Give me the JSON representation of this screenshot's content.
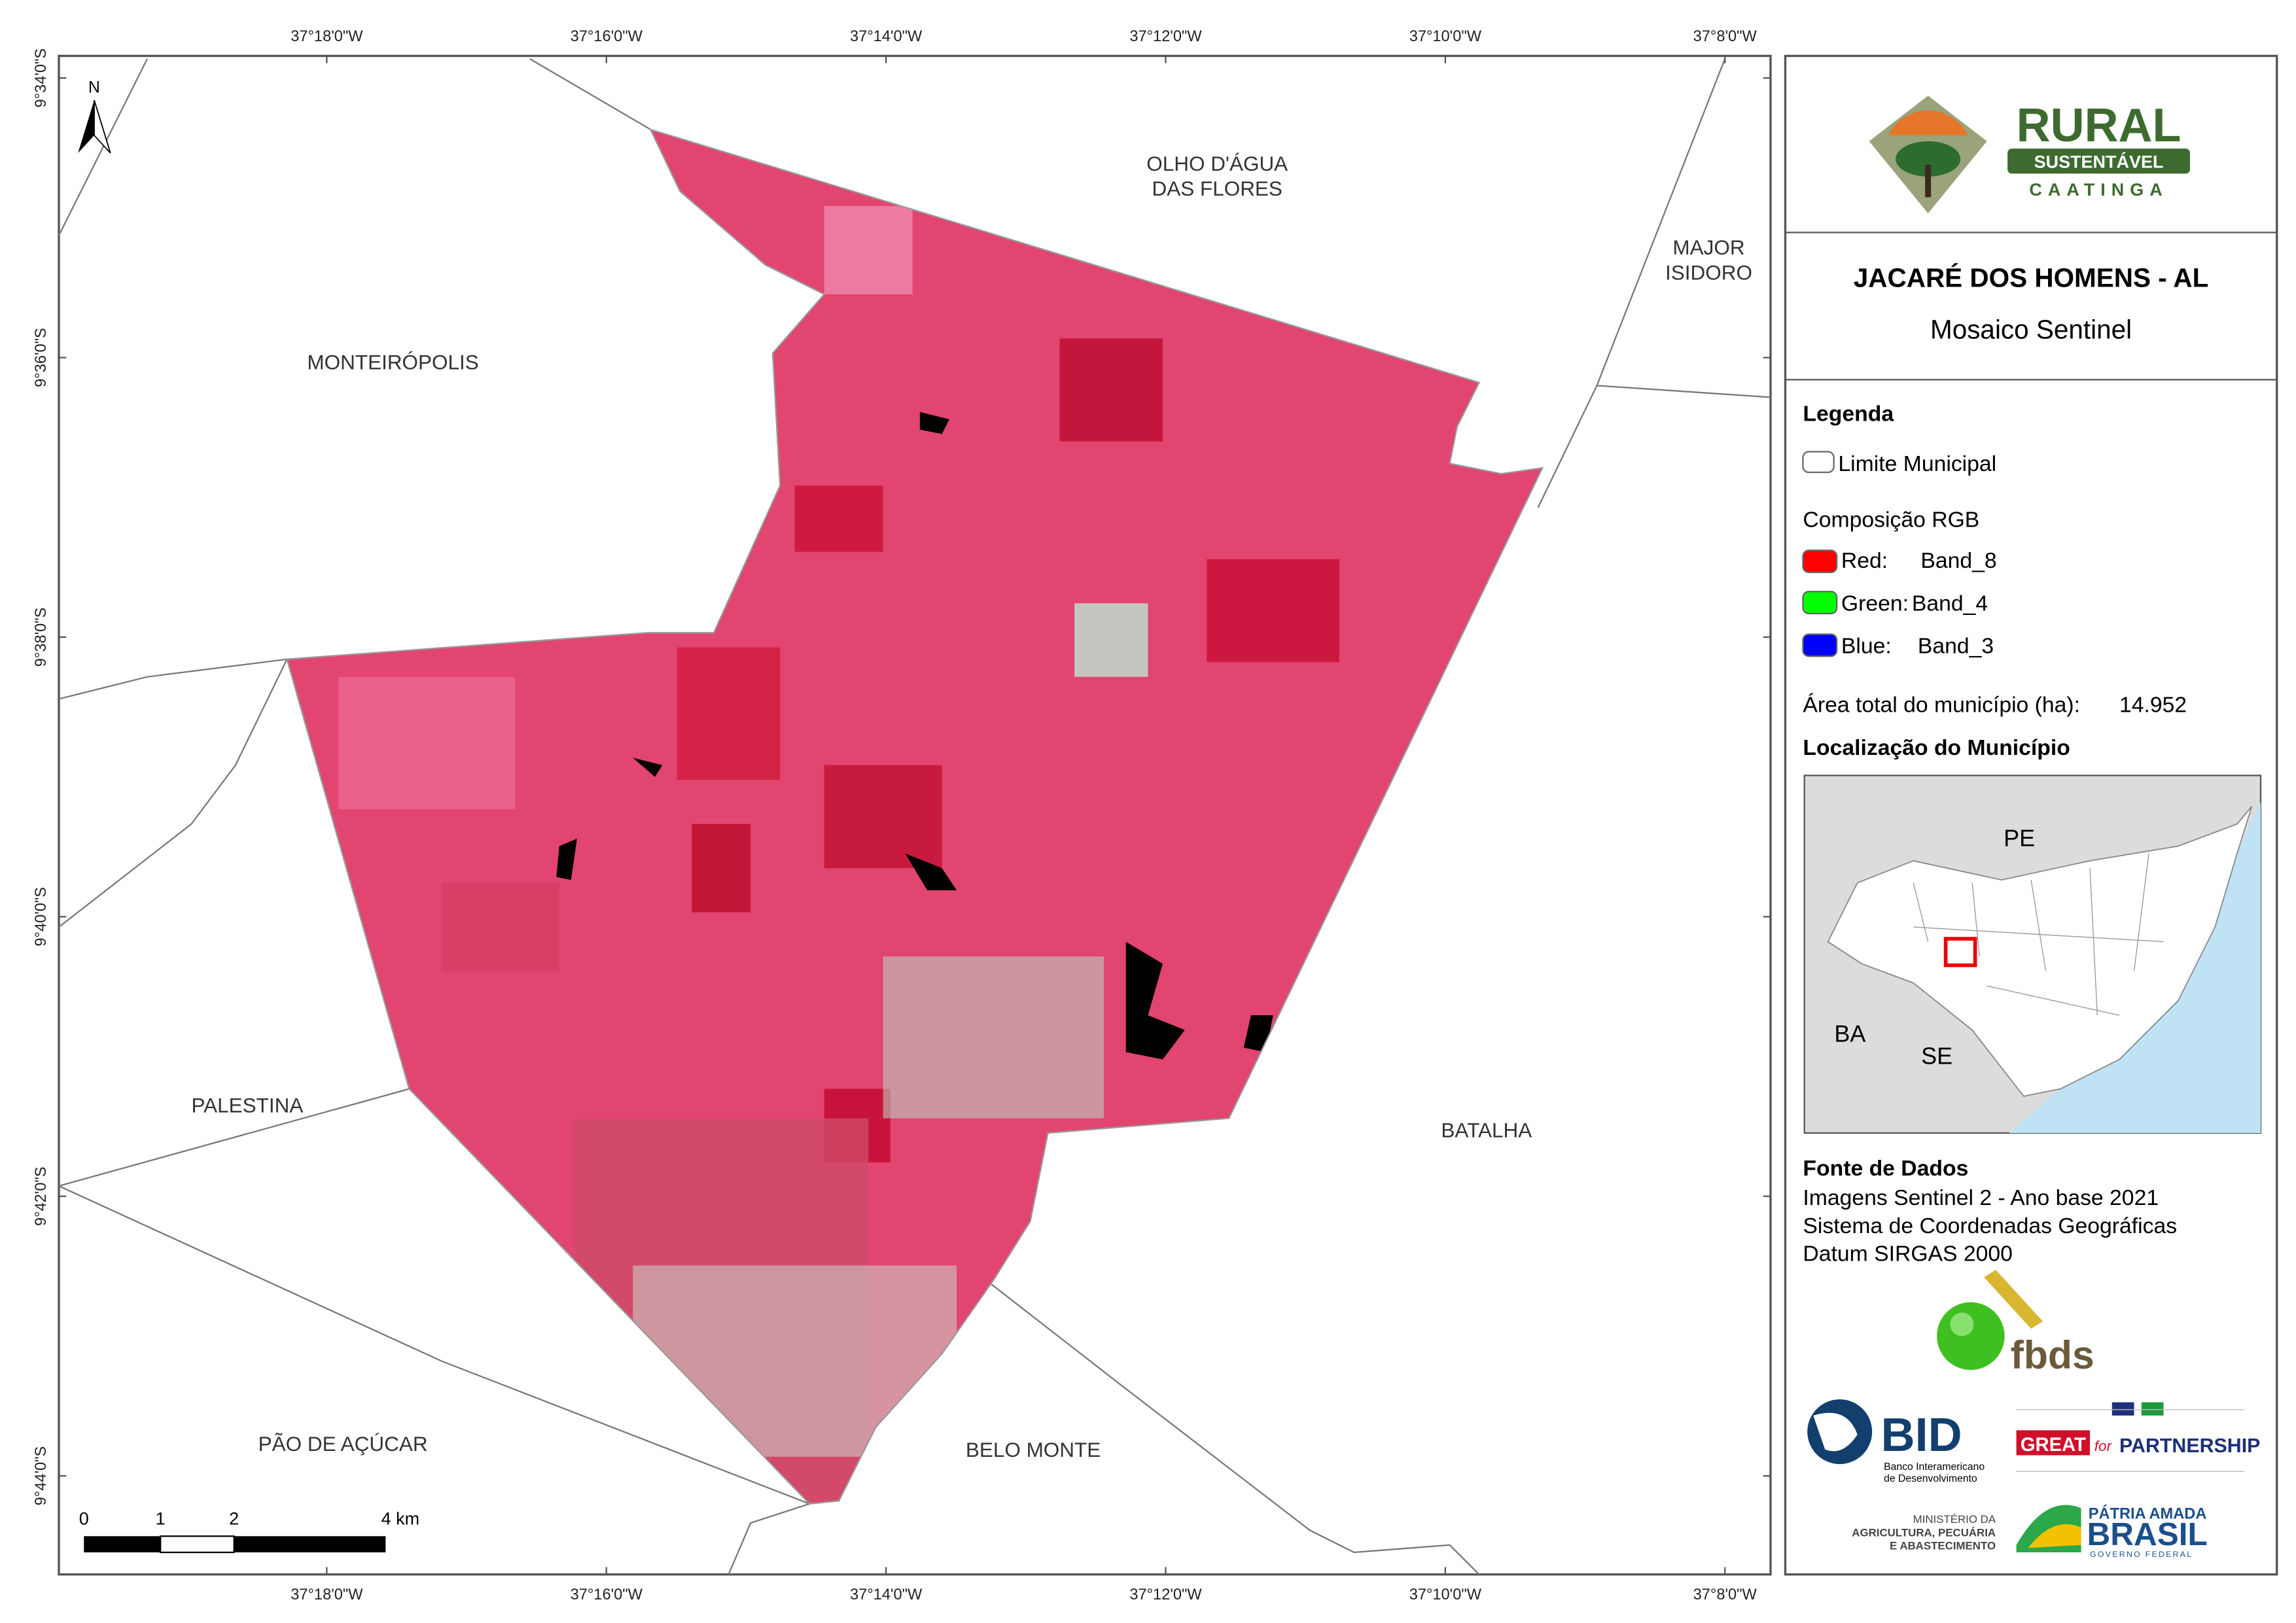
{
  "map": {
    "longitude_labels": [
      "37°18'0\"W",
      "37°16'0\"W",
      "37°14'0\"W",
      "37°12'0\"W",
      "37°10'0\"W",
      "37°8'0\"W"
    ],
    "latitude_labels": [
      "9°34'0\"S",
      "9°36'0\"S",
      "9°38'0\"S",
      "9°40'0\"S",
      "9°42'0\"S",
      "9°44'0\"S"
    ],
    "north_arrow": "N",
    "places": [
      "OLHO D'ÁGUA",
      "DAS FLORES",
      "MAJOR",
      "ISIDORO",
      "MONTEIRÓPOLIS",
      "PALESTINA",
      "BATALHA",
      "PÃO DE AÇÚCAR",
      "BELO MONTE"
    ],
    "scale_bar": [
      "0",
      "1",
      "2",
      "4 km"
    ]
  },
  "panel": {
    "logo": {
      "word": "RURAL",
      "banner": "SUSTENTÁVEL",
      "region": "CAATINGA"
    },
    "title": "JACARÉ DOS HOMENS - AL",
    "subtitle": "Mosaico Sentinel",
    "legend": {
      "title": "Legenda",
      "boundary": "Limite Municipal",
      "composition": "Composição RGB",
      "bands": [
        {
          "channel": "Red:",
          "band": "Band_8"
        },
        {
          "channel": "Green:",
          "band": "Band_4"
        },
        {
          "channel": "Blue:",
          "band": "Band_3"
        }
      ]
    },
    "area_label": "Área total do município (ha):",
    "area_value": "14.952",
    "location_title": "Localização do Município",
    "inset_labels": [
      "PE",
      "BA",
      "SE"
    ],
    "sources_title": "Fonte de Dados",
    "sources": [
      "Imagens Sentinel 2 - Ano base 2021",
      "Sistema de Coordenadas Geográficas",
      "Datum SIRGAS 2000"
    ],
    "partners": {
      "fbds": "fbds",
      "bid": "BID",
      "bid_name": [
        "Banco Interamericano",
        "de Desenvolvimento"
      ],
      "great": "GREAT",
      "great_for": "for",
      "great_partnership": "PARTNERSHIP",
      "ministry": [
        "MINISTÉRIO DA",
        "AGRICULTURA, PECUÁRIA",
        "E ABASTECIMENTO"
      ],
      "brasil": [
        "PÁTRIA AMADA",
        "BRASIL",
        "GOVERNO FEDERAL"
      ]
    }
  }
}
